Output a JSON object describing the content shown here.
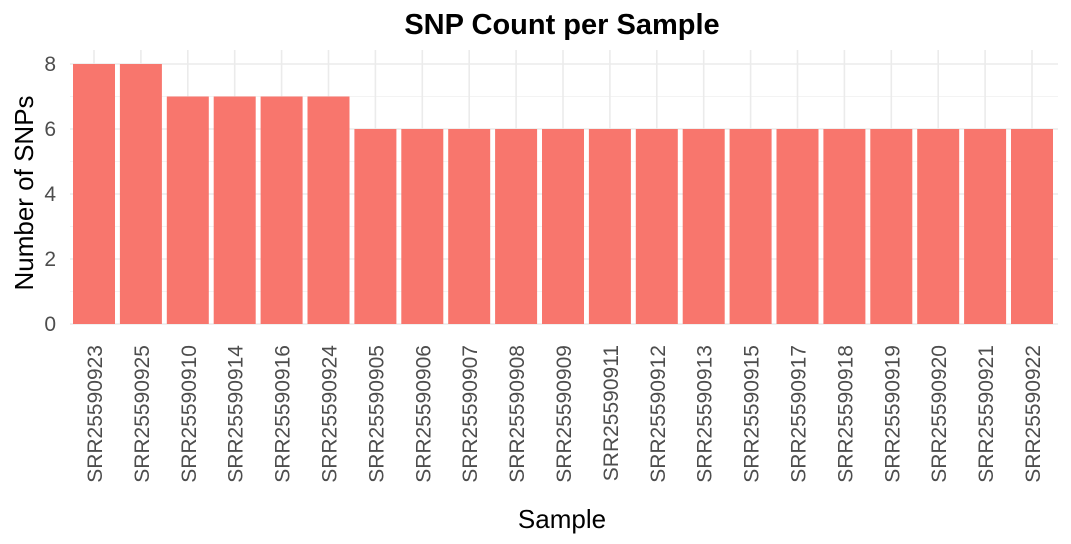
{
  "chart_data": {
    "type": "bar",
    "title": "SNP Count per Sample",
    "xlabel": "Sample",
    "ylabel": "Number of SNPs",
    "categories": [
      "SRR25590923",
      "SRR25590925",
      "SRR25590910",
      "SRR25590914",
      "SRR25590916",
      "SRR25590924",
      "SRR25590905",
      "SRR25590906",
      "SRR25590907",
      "SRR25590908",
      "SRR25590909",
      "SRR25590911",
      "SRR25590912",
      "SRR25590913",
      "SRR25590915",
      "SRR25590917",
      "SRR25590918",
      "SRR25590919",
      "SRR25590920",
      "SRR25590921",
      "SRR25590922"
    ],
    "values": [
      8,
      8,
      7,
      7,
      7,
      7,
      6,
      6,
      6,
      6,
      6,
      6,
      6,
      6,
      6,
      6,
      6,
      6,
      6,
      6,
      6
    ],
    "ylim": [
      0,
      8
    ],
    "yticks": [
      0,
      2,
      4,
      6,
      8
    ],
    "bar_color": "#F8766D",
    "grid": true,
    "legend": "none"
  }
}
